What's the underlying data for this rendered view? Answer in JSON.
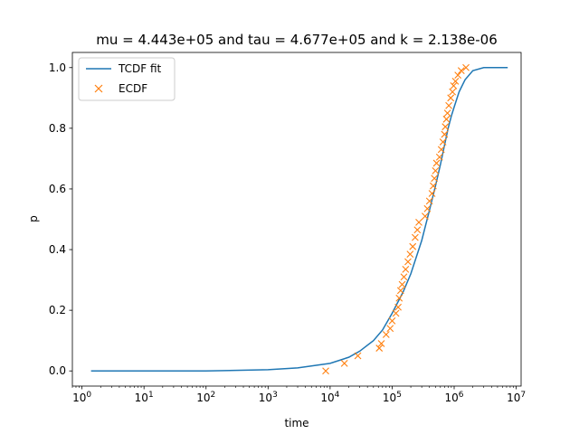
{
  "chart_data": {
    "type": "line",
    "title": "mu = 4.443e+05 and tau = 4.677e+05 and k = 2.138e-06",
    "xlabel": "time",
    "ylabel": "p",
    "xscale": "log",
    "xlim": [
      0.7,
      12000000
    ],
    "ylim": [
      -0.05,
      1.05
    ],
    "xticks": [
      {
        "value": 1,
        "base": "10",
        "exp": "0"
      },
      {
        "value": 10,
        "base": "10",
        "exp": "1"
      },
      {
        "value": 100,
        "base": "10",
        "exp": "2"
      },
      {
        "value": 1000,
        "base": "10",
        "exp": "3"
      },
      {
        "value": 10000,
        "base": "10",
        "exp": "4"
      },
      {
        "value": 100000,
        "base": "10",
        "exp": "5"
      },
      {
        "value": 1000000,
        "base": "10",
        "exp": "6"
      },
      {
        "value": 10000000,
        "base": "10",
        "exp": "7"
      }
    ],
    "yticks": [
      {
        "value": 0.0,
        "label": "0.0"
      },
      {
        "value": 0.2,
        "label": "0.2"
      },
      {
        "value": 0.4,
        "label": "0.4"
      },
      {
        "value": 0.6,
        "label": "0.6"
      },
      {
        "value": 0.8,
        "label": "0.8"
      },
      {
        "value": 1.0,
        "label": "1.0"
      }
    ],
    "grid": false,
    "legend_position": "top-left",
    "colors": {
      "fit": "#1f77b4",
      "ecdf": "#ff7f0e"
    },
    "series": [
      {
        "name": "TCDF fit",
        "kind": "line",
        "x": [
          1.4,
          100,
          1000,
          3000,
          10000,
          20000,
          30000,
          50000,
          70000,
          100000,
          150000,
          200000,
          300000,
          400000,
          500000,
          600000,
          700000,
          800000,
          900000,
          1000000,
          1200000,
          1500000,
          2000000,
          3000000,
          5000000,
          7300000
        ],
        "y": [
          0.0,
          0.0,
          0.004,
          0.01,
          0.025,
          0.045,
          0.065,
          0.1,
          0.135,
          0.19,
          0.26,
          0.32,
          0.43,
          0.53,
          0.61,
          0.68,
          0.745,
          0.8,
          0.84,
          0.87,
          0.92,
          0.96,
          0.99,
          1.0,
          1.0,
          1.0
        ]
      },
      {
        "name": "ECDF",
        "kind": "scatter",
        "marker": "x",
        "x": [
          8500,
          17000,
          28000,
          62000,
          67000,
          80000,
          93000,
          100000,
          115000,
          125000,
          130000,
          137000,
          145000,
          155000,
          165000,
          180000,
          195000,
          215000,
          235000,
          255000,
          270000,
          340000,
          370000,
          400000,
          440000,
          460000,
          480000,
          500000,
          520000,
          580000,
          620000,
          660000,
          700000,
          720000,
          750000,
          780000,
          820000,
          880000,
          940000,
          980000,
          1050000,
          1150000,
          1300000,
          1550000
        ],
        "y": [
          0.0,
          0.025,
          0.05,
          0.075,
          0.09,
          0.12,
          0.14,
          0.165,
          0.19,
          0.21,
          0.24,
          0.265,
          0.285,
          0.31,
          0.335,
          0.36,
          0.385,
          0.41,
          0.44,
          0.465,
          0.49,
          0.51,
          0.535,
          0.56,
          0.585,
          0.61,
          0.635,
          0.66,
          0.685,
          0.705,
          0.73,
          0.755,
          0.78,
          0.805,
          0.83,
          0.85,
          0.875,
          0.9,
          0.92,
          0.94,
          0.955,
          0.975,
          0.99,
          1.0
        ]
      }
    ]
  }
}
